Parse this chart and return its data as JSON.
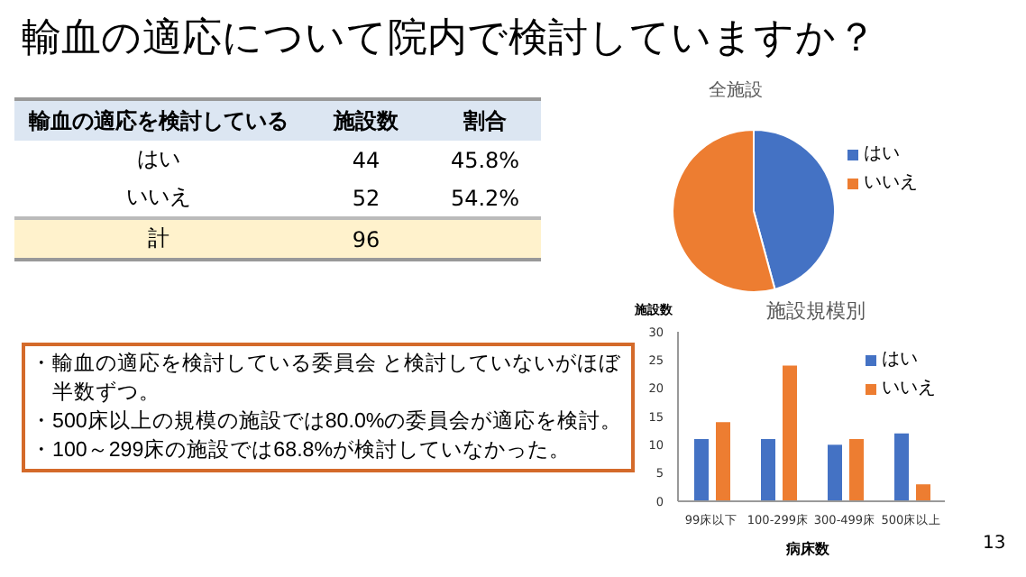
{
  "chart_data": [
    {
      "type": "pie",
      "title": "輸血の適応について院内で検討していますか？",
      "subtitle": "全施設",
      "categories": [
        "はい",
        "いいえ"
      ],
      "values": [
        45.8,
        54.2
      ],
      "colors": [
        "#4472c4",
        "#ed7d31"
      ],
      "legend": "right",
      "value_labels": [
        "45.8%",
        "54.2%"
      ],
      "annotations": [
        "輸血の適応を検討している",
        "施設数",
        "割合",
        "44",
        "52",
        "計",
        "96",
        "・輸血の適応を検討している委員会 と検討していないがほぼ半数ずつ。",
        "・500床以上の規模の施設では80.0%の委員会が適応を検討。",
        "・100～299床の施設では68.8%が検討していなかった。",
        "13"
      ]
    },
    {
      "type": "bar",
      "title": "施設規模別",
      "xlabel": "病床数",
      "ylabel": "施設数",
      "categories": [
        "99床以下",
        "100-299床",
        "300-499床",
        "500床以上"
      ],
      "series": [
        {
          "name": "はい",
          "color": "#4472c4",
          "values": [
            11,
            11,
            10,
            12
          ]
        },
        {
          "name": "いいえ",
          "color": "#ed7d31",
          "values": [
            14,
            24,
            11,
            3
          ]
        }
      ],
      "ylim": [
        0,
        30
      ],
      "yticks": [
        0,
        5,
        10,
        15,
        20,
        25,
        30
      ],
      "grid": false,
      "legend": "top right"
    }
  ]
}
